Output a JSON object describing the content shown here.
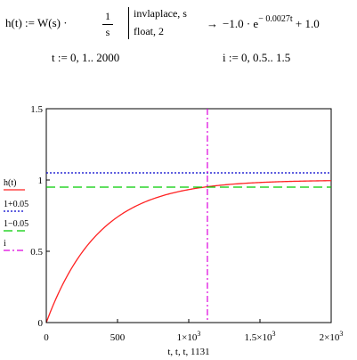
{
  "formula": {
    "lhs": "h(t) := W(s) ·",
    "frac_num": "1",
    "frac_den": "s",
    "op1": "invlaplace, s",
    "op2": "float, 2",
    "arrow": "→",
    "result_base": "−1.0 · e",
    "result_exp": "− 0.0027t",
    "result_tail": "+ 1.0"
  },
  "ranges": {
    "t_range": "t := 0, 1.. 2000",
    "i_range": "i := 0, 0.5.. 1.5"
  },
  "colors": {
    "h": "#ff2222",
    "upper": "#0000cc",
    "lower": "#00cc00",
    "vline": "#dd00dd",
    "axis": "#000000"
  },
  "chart_data": {
    "type": "line",
    "xlim": [
      0,
      2000
    ],
    "ylim": [
      0,
      1.5
    ],
    "x_ticks": [
      {
        "value": 0,
        "label": "0"
      },
      {
        "value": 500,
        "label": "500"
      },
      {
        "value": 1000,
        "label": "1×10",
        "sup": "3"
      },
      {
        "value": 1500,
        "label": "1.5×10",
        "sup": "3"
      },
      {
        "value": 2000,
        "label": "2×10",
        "sup": "3"
      }
    ],
    "y_ticks": [
      {
        "value": 0,
        "label": "0"
      },
      {
        "value": 0.5,
        "label": "0.5"
      },
      {
        "value": 1,
        "label": "1"
      },
      {
        "value": 1.5,
        "label": "1.5"
      }
    ],
    "xlabel": "t, t, t, 1131",
    "series": [
      {
        "name": "h(t)",
        "kind": "curve",
        "k": 0.0027,
        "color": "#ff2222",
        "dash": ""
      },
      {
        "name": "1+0.05",
        "kind": "hline",
        "y": 1.05,
        "color": "#0000cc",
        "dash": "2,2"
      },
      {
        "name": "1−0.05",
        "kind": "hline",
        "y": 0.95,
        "color": "#00cc00",
        "dash": "10,5"
      },
      {
        "name": "i",
        "kind": "vline",
        "x": 1131,
        "color": "#dd00dd",
        "dash": "7,3,2,3"
      }
    ]
  }
}
